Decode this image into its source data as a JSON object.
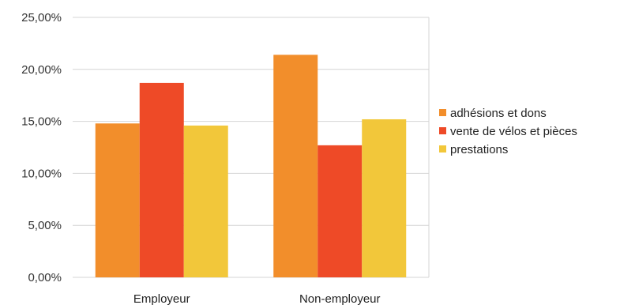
{
  "chart_data": {
    "type": "bar",
    "categories": [
      "Employeur",
      "Non-employeur"
    ],
    "series": [
      {
        "name": "adhésions et dons",
        "values": [
          14.8,
          21.4
        ],
        "color": "#f28e2b"
      },
      {
        "name": "vente de vélos et pièces",
        "values": [
          18.7,
          12.7
        ],
        "color": "#ee4a27"
      },
      {
        "name": "prestations",
        "values": [
          14.6,
          15.2
        ],
        "color": "#f2c73a"
      }
    ],
    "y_ticks": [
      0,
      5,
      10,
      15,
      20,
      25
    ],
    "y_tick_labels": [
      "0,00%",
      "5,00%",
      "10,00%",
      "15,00%",
      "20,00%",
      "25,00%"
    ],
    "ylim": [
      0,
      25
    ],
    "grid": true,
    "legend_position": "right"
  }
}
